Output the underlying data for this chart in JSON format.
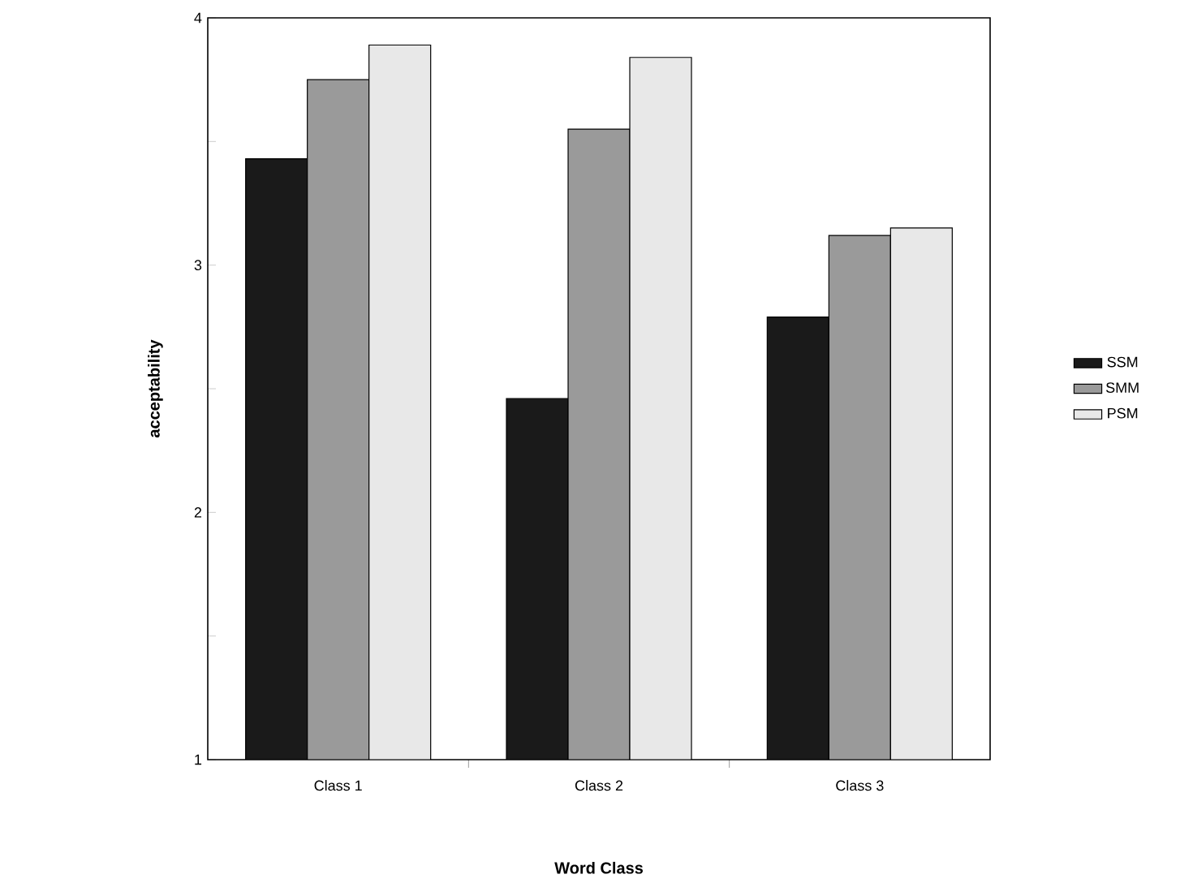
{
  "chart_data": {
    "type": "bar",
    "xlabel": "Word Class",
    "ylabel": "acceptability",
    "categories": [
      "Class 1",
      "Class 2",
      "Class 3"
    ],
    "series": [
      {
        "name": "SSM",
        "color": "#1a1a1a",
        "values": [
          3.43,
          2.46,
          2.79
        ]
      },
      {
        "name": "SMM",
        "color": "#9a9a9a",
        "values": [
          3.75,
          3.55,
          3.12
        ]
      },
      {
        "name": "PSM",
        "color": "#e8e8e8",
        "values": [
          3.89,
          3.84,
          3.15
        ]
      }
    ],
    "ylim": [
      1,
      4
    ],
    "yticks": [
      1,
      {
        "value": 1.5,
        "label": null
      },
      2,
      {
        "value": 2.5,
        "label": null
      },
      3,
      {
        "value": 3.5,
        "label": null
      },
      4
    ],
    "legend": "right"
  }
}
